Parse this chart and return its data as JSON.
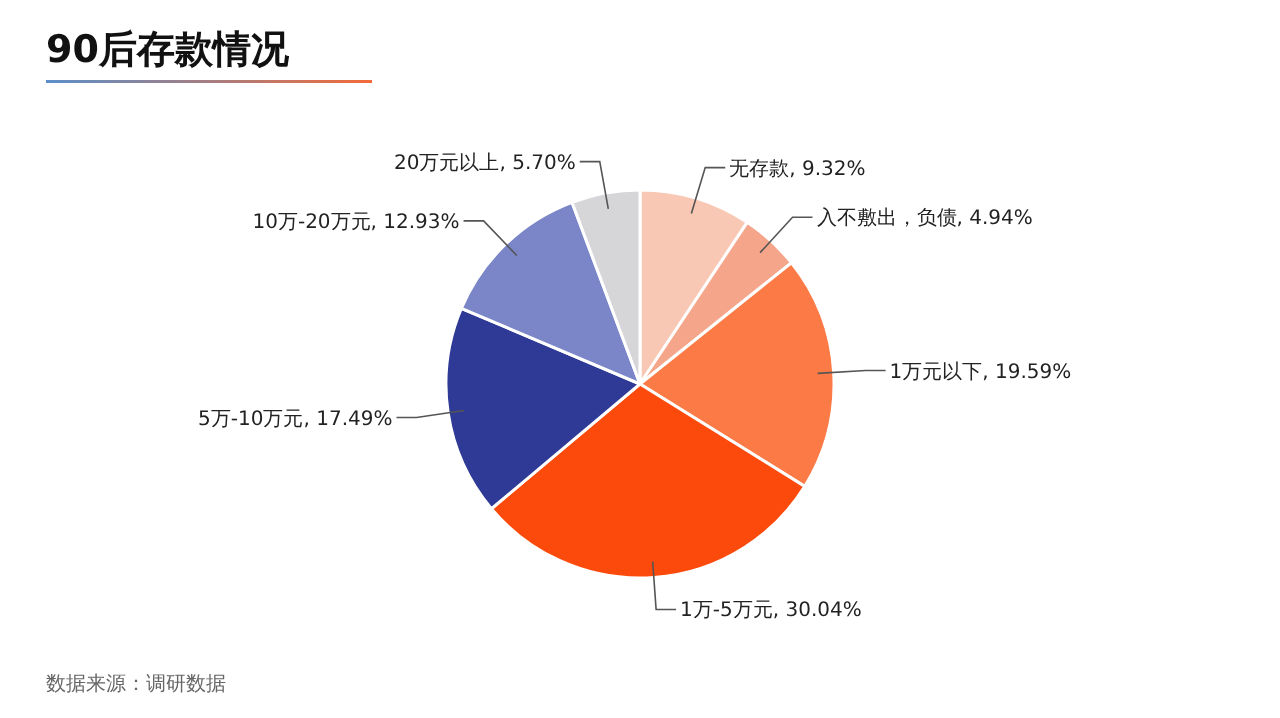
{
  "chart_data": {
    "type": "pie",
    "title": "90后存款情况",
    "categories": [
      "无存款",
      "入不敷出，负债",
      "1万元以下",
      "1万-5万元",
      "5万-10万元",
      "10万-20万元",
      "20万元以上"
    ],
    "values": [
      9.32,
      4.94,
      19.59,
      30.04,
      17.49,
      12.93,
      5.7
    ],
    "colors": [
      "#f9c8b4",
      "#f4a58a",
      "#fb7a45",
      "#fc4a0c",
      "#2e3a95",
      "#7a86c8",
      "#d6d6d9"
    ],
    "value_labels": [
      ", 9.32%",
      ", 4.94%",
      ", 19.59%",
      ", 30.04%",
      ", 17.49%",
      ", 12.93%",
      ", 5.70%"
    ],
    "annotations": [
      "数据来源：调研数据"
    ]
  }
}
